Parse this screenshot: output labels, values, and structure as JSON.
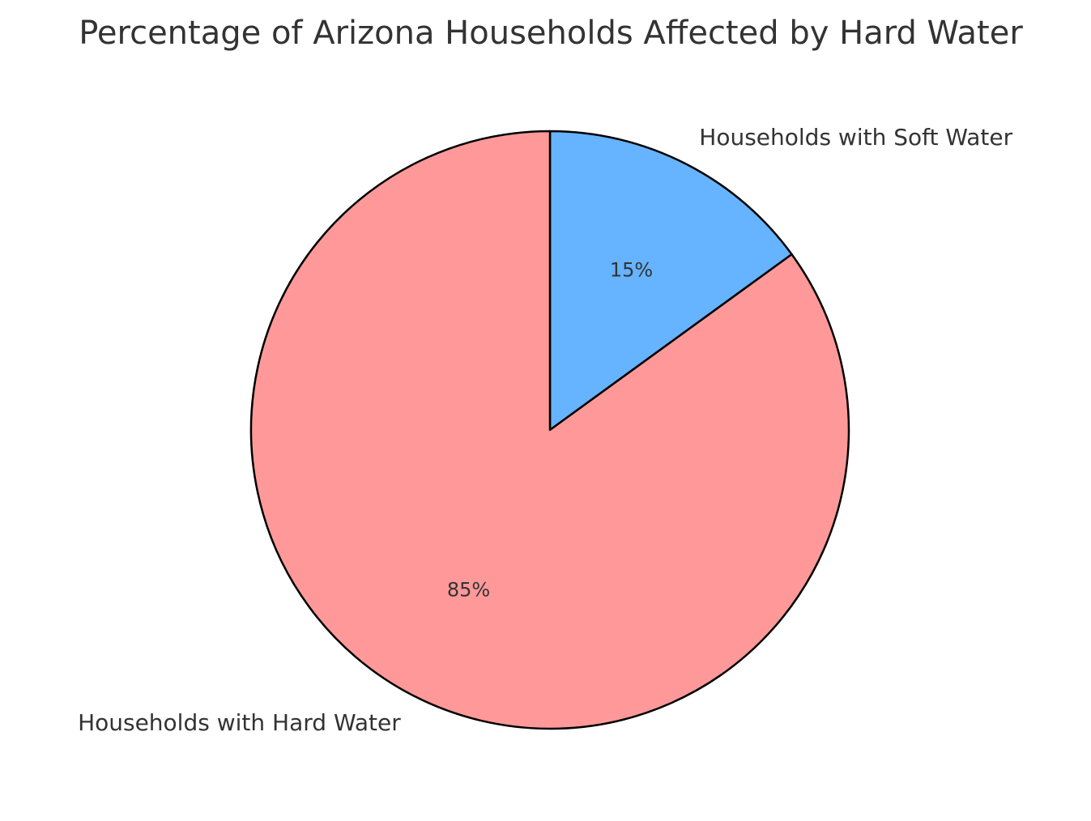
{
  "chart_data": {
    "type": "pie",
    "title": "Percentage of Arizona Households Affected by Hard Water",
    "start_angle_deg": 90,
    "direction": "clockwise",
    "slices": [
      {
        "label": "Households with Soft Water",
        "value": 15,
        "pct_label": "15%",
        "color": "#66b3ff"
      },
      {
        "label": "Households with Hard Water",
        "value": 85,
        "pct_label": "85%",
        "color": "#ff9999"
      }
    ],
    "edge_color": "#000000",
    "legend": "none"
  }
}
